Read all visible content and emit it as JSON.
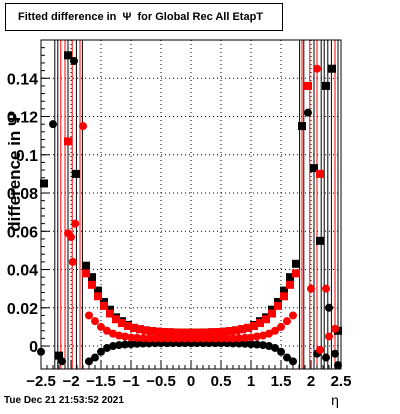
{
  "title": "Fitted difference in  Ψ  for Global Rec All EtapT",
  "timestamp": "Tue Dec 21 21:53:52 2021",
  "chart_data": {
    "type": "scatter",
    "title": "Fitted difference in  Ψ  for Global Rec All EtapT",
    "xlabel": "η",
    "ylabel": "difference in  Ψ",
    "xlim": [
      -2.5,
      2.5
    ],
    "ylim": [
      -0.012,
      0.16
    ],
    "x_ticks": [
      "−2.5",
      "−2",
      "−1.5",
      "−1",
      "−0.5",
      "0",
      "0.5",
      "1",
      "1.5",
      "2",
      "2.5"
    ],
    "x_tick_values": [
      -2.5,
      -2,
      -1.5,
      -1,
      -0.5,
      0,
      0.5,
      1,
      1.5,
      2,
      2.5
    ],
    "y_ticks": [
      "0",
      "0.02",
      "0.04",
      "0.06",
      "0.08",
      "0.1",
      "0.12",
      "0.14"
    ],
    "y_tick_values": [
      0,
      0.02,
      0.04,
      0.06,
      0.08,
      0.1,
      0.12,
      0.14
    ],
    "grid": true,
    "series": [
      {
        "color": "#000000",
        "marker": "square",
        "points": [
          [
            -2.45,
            0.085
          ],
          [
            -2.2,
            -0.005
          ],
          [
            -2.05,
            0.152
          ],
          [
            -1.92,
            0.09
          ],
          [
            -1.75,
            0.042
          ],
          [
            -1.65,
            0.036
          ],
          [
            -1.55,
            0.029
          ],
          [
            -1.45,
            0.023
          ],
          [
            -1.35,
            0.019
          ],
          [
            -1.25,
            0.015
          ],
          [
            -1.15,
            0.013
          ],
          [
            -1.05,
            0.011
          ],
          [
            -0.95,
            0.0095
          ],
          [
            -0.85,
            0.0088
          ],
          [
            -0.75,
            0.0082
          ],
          [
            -0.65,
            0.0078
          ],
          [
            -0.55,
            0.0075
          ],
          [
            -0.45,
            0.0073
          ],
          [
            -0.35,
            0.0072
          ],
          [
            -0.25,
            0.0071
          ],
          [
            -0.15,
            0.007
          ],
          [
            -0.05,
            0.007
          ],
          [
            0.05,
            0.007
          ],
          [
            0.15,
            0.007
          ],
          [
            0.25,
            0.0071
          ],
          [
            0.35,
            0.0072
          ],
          [
            0.45,
            0.0073
          ],
          [
            0.55,
            0.0075
          ],
          [
            0.65,
            0.0078
          ],
          [
            0.75,
            0.0082
          ],
          [
            0.85,
            0.0088
          ],
          [
            0.95,
            0.0095
          ],
          [
            1.05,
            0.011
          ],
          [
            1.15,
            0.013
          ],
          [
            1.25,
            0.015
          ],
          [
            1.35,
            0.019
          ],
          [
            1.45,
            0.023
          ],
          [
            1.55,
            0.029
          ],
          [
            1.65,
            0.036
          ],
          [
            1.75,
            0.043
          ],
          [
            1.85,
            0.115
          ],
          [
            2.05,
            0.093
          ],
          [
            2.15,
            0.055
          ],
          [
            2.25,
            0.136
          ],
          [
            2.35,
            0.145
          ],
          [
            2.45,
            0.008
          ]
        ]
      },
      {
        "color": "#ff0000",
        "marker": "square",
        "points": [
          [
            -2.05,
            0.107
          ],
          [
            -1.75,
            0.038
          ],
          [
            -1.65,
            0.032
          ],
          [
            -1.55,
            0.026
          ],
          [
            -1.45,
            0.021
          ],
          [
            -1.35,
            0.017
          ],
          [
            -1.25,
            0.014
          ],
          [
            -1.15,
            0.012
          ],
          [
            -1.05,
            0.0105
          ],
          [
            -0.95,
            0.0095
          ],
          [
            -0.85,
            0.0088
          ],
          [
            -0.75,
            0.0082
          ],
          [
            -0.65,
            0.0078
          ],
          [
            -0.55,
            0.0075
          ],
          [
            -0.45,
            0.0073
          ],
          [
            -0.35,
            0.0072
          ],
          [
            -0.25,
            0.0071
          ],
          [
            -0.15,
            0.007
          ],
          [
            -0.05,
            0.007
          ],
          [
            0.05,
            0.007
          ],
          [
            0.15,
            0.007
          ],
          [
            0.25,
            0.0071
          ],
          [
            0.35,
            0.0072
          ],
          [
            0.45,
            0.0073
          ],
          [
            0.55,
            0.0075
          ],
          [
            0.65,
            0.0078
          ],
          [
            0.75,
            0.0082
          ],
          [
            0.85,
            0.0088
          ],
          [
            0.95,
            0.0095
          ],
          [
            1.05,
            0.0105
          ],
          [
            1.15,
            0.012
          ],
          [
            1.25,
            0.014
          ],
          [
            1.35,
            0.017
          ],
          [
            1.45,
            0.021
          ],
          [
            1.55,
            0.026
          ],
          [
            1.65,
            0.032
          ],
          [
            1.75,
            0.038
          ],
          [
            1.95,
            0.136
          ],
          [
            2.15,
            0.09
          ]
        ]
      },
      {
        "color": "#000000",
        "marker": "circle",
        "points": [
          [
            -2.5,
            -0.003
          ],
          [
            -2.3,
            0.116
          ],
          [
            -2.15,
            -0.008
          ],
          [
            -1.95,
            0.149
          ],
          [
            -1.7,
            -0.008
          ],
          [
            -1.6,
            -0.006
          ],
          [
            -1.5,
            -0.003
          ],
          [
            -1.4,
            -0.001
          ],
          [
            -1.3,
            0.0
          ],
          [
            -1.2,
            0.0005
          ],
          [
            -1.1,
            0.0008
          ],
          [
            -1.0,
            0.001
          ],
          [
            -0.9,
            0.0012
          ],
          [
            -0.8,
            0.0013
          ],
          [
            -0.7,
            0.0014
          ],
          [
            -0.6,
            0.0015
          ],
          [
            -0.5,
            0.0015
          ],
          [
            -0.4,
            0.0015
          ],
          [
            -0.3,
            0.0015
          ],
          [
            -0.2,
            0.0015
          ],
          [
            -0.1,
            0.0015
          ],
          [
            0.0,
            0.0015
          ],
          [
            0.1,
            0.0015
          ],
          [
            0.2,
            0.0015
          ],
          [
            0.3,
            0.0015
          ],
          [
            0.4,
            0.0015
          ],
          [
            0.5,
            0.0015
          ],
          [
            0.6,
            0.0015
          ],
          [
            0.7,
            0.0014
          ],
          [
            0.8,
            0.0013
          ],
          [
            0.9,
            0.0012
          ],
          [
            1.0,
            0.001
          ],
          [
            1.1,
            0.0008
          ],
          [
            1.2,
            0.0005
          ],
          [
            1.3,
            0.0
          ],
          [
            1.4,
            -0.001
          ],
          [
            1.5,
            -0.003
          ],
          [
            1.6,
            -0.006
          ],
          [
            1.7,
            -0.008
          ],
          [
            1.95,
            0.122
          ],
          [
            2.1,
            -0.004
          ],
          [
            2.25,
            -0.006
          ],
          [
            2.3,
            0.02
          ],
          [
            2.4,
            -0.004
          ],
          [
            2.45,
            -0.01
          ]
        ]
      },
      {
        "color": "#ff0000",
        "marker": "circle",
        "points": [
          [
            -2.05,
            0.059
          ],
          [
            -1.97,
            0.044
          ],
          [
            -1.93,
            0.064
          ],
          [
            -2.0,
            0.057
          ],
          [
            -1.8,
            0.115
          ],
          [
            -1.7,
            0.016
          ],
          [
            -1.6,
            0.013
          ],
          [
            -1.5,
            0.01
          ],
          [
            -1.4,
            0.008
          ],
          [
            -1.3,
            0.0065
          ],
          [
            -1.2,
            0.0055
          ],
          [
            -1.1,
            0.005
          ],
          [
            -1.0,
            0.0045
          ],
          [
            -0.9,
            0.0043
          ],
          [
            -0.8,
            0.0041
          ],
          [
            -0.7,
            0.004
          ],
          [
            -0.6,
            0.004
          ],
          [
            -0.5,
            0.004
          ],
          [
            -0.4,
            0.004
          ],
          [
            -0.3,
            0.004
          ],
          [
            -0.2,
            0.004
          ],
          [
            -0.1,
            0.004
          ],
          [
            0.0,
            0.004
          ],
          [
            0.1,
            0.004
          ],
          [
            0.2,
            0.004
          ],
          [
            0.3,
            0.004
          ],
          [
            0.4,
            0.004
          ],
          [
            0.5,
            0.004
          ],
          [
            0.6,
            0.004
          ],
          [
            0.7,
            0.004
          ],
          [
            0.8,
            0.0041
          ],
          [
            0.9,
            0.0043
          ],
          [
            1.0,
            0.0045
          ],
          [
            1.1,
            0.005
          ],
          [
            1.2,
            0.0055
          ],
          [
            1.3,
            0.0065
          ],
          [
            1.4,
            0.008
          ],
          [
            1.5,
            0.01
          ],
          [
            1.6,
            0.013
          ],
          [
            1.7,
            0.016
          ],
          [
            2.0,
            0.03
          ],
          [
            2.1,
            0.145
          ],
          [
            2.15,
            -0.002
          ],
          [
            2.25,
            0.03
          ],
          [
            2.3,
            0.005
          ],
          [
            2.4,
            0.009
          ]
        ]
      }
    ]
  }
}
